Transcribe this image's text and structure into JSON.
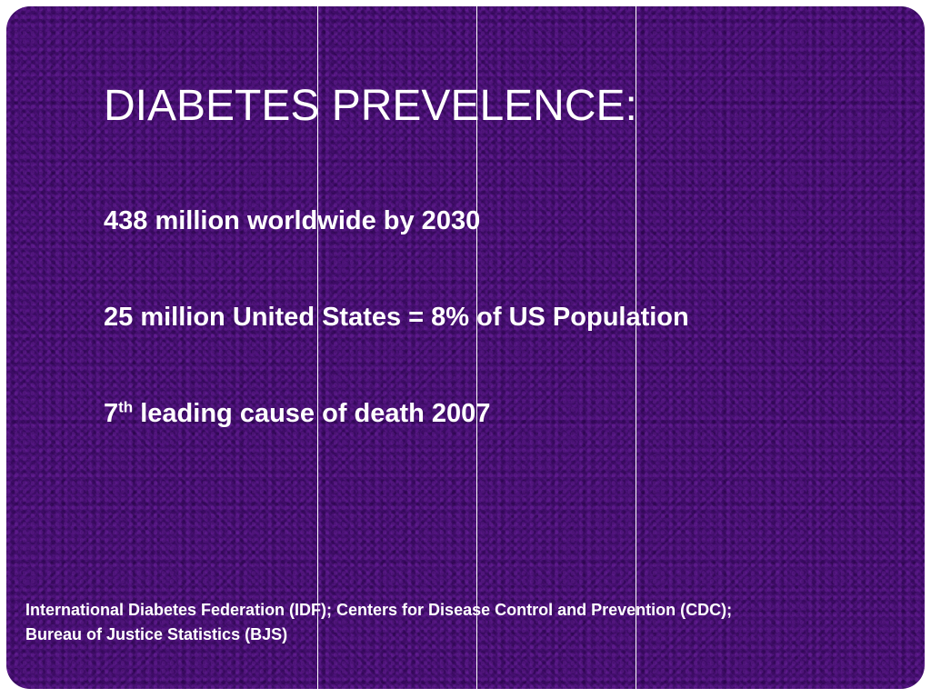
{
  "slide": {
    "title": "DIABETES PREVELENCE:",
    "bullets": [
      {
        "text": "438 million worldwide by 2030"
      },
      {
        "text": "25 million United States = 8% of US Population"
      },
      {
        "prefix": "7",
        "superscript": "th",
        "text": " leading cause of death 2007"
      }
    ],
    "source_lines": [
      "International Diabetes Federation (IDF); Centers for Disease Control and Prevention (CDC);",
      "Bureau of Justice Statistics (BJS)"
    ]
  },
  "colors": {
    "background": "#45106f",
    "text": "#ffffff",
    "lines": "#ffffff"
  }
}
